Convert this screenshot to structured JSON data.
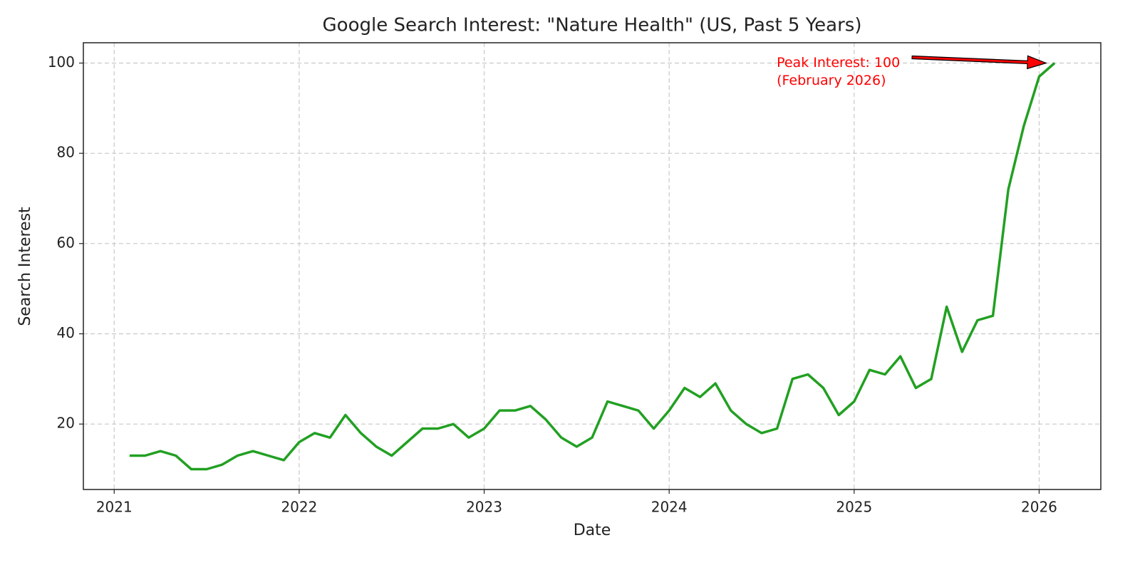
{
  "chart_data": {
    "type": "line",
    "title": "Google Search Interest: \"Nature Health\" (US, Past 5 Years)",
    "x_label": "Date",
    "y_label": "Search Interest",
    "x": [
      "2021-02",
      "2021-03",
      "2021-04",
      "2021-05",
      "2021-06",
      "2021-07",
      "2021-08",
      "2021-09",
      "2021-10",
      "2021-11",
      "2021-12",
      "2022-01",
      "2022-02",
      "2022-03",
      "2022-04",
      "2022-05",
      "2022-06",
      "2022-07",
      "2022-08",
      "2022-09",
      "2022-10",
      "2022-11",
      "2022-12",
      "2023-01",
      "2023-02",
      "2023-03",
      "2023-04",
      "2023-05",
      "2023-06",
      "2023-07",
      "2023-08",
      "2023-09",
      "2023-10",
      "2023-11",
      "2023-12",
      "2024-01",
      "2024-02",
      "2024-03",
      "2024-04",
      "2024-05",
      "2024-06",
      "2024-07",
      "2024-08",
      "2024-09",
      "2024-10",
      "2024-11",
      "2024-12",
      "2025-01",
      "2025-02",
      "2025-03",
      "2025-04",
      "2025-05",
      "2025-06",
      "2025-07",
      "2025-08",
      "2025-09",
      "2025-10",
      "2025-11",
      "2025-12",
      "2026-01",
      "2026-02"
    ],
    "series": [
      {
        "name": "Search Interest",
        "color": "#22a022",
        "values": [
          13,
          13,
          14,
          13,
          10,
          10,
          11,
          13,
          14,
          13,
          12,
          16,
          18,
          17,
          22,
          18,
          15,
          13,
          16,
          19,
          19,
          20,
          17,
          19,
          23,
          23,
          24,
          21,
          17,
          15,
          17,
          25,
          24,
          23,
          19,
          23,
          28,
          26,
          29,
          23,
          20,
          18,
          19,
          30,
          31,
          28,
          22,
          25,
          32,
          31,
          35,
          28,
          30,
          46,
          36,
          43,
          44,
          72,
          86,
          97,
          100
        ]
      }
    ],
    "xlim": [
      "2020-11",
      "2026-05"
    ],
    "xticks": [
      "2021",
      "2022",
      "2023",
      "2024",
      "2025",
      "2026"
    ],
    "ylim": [
      5.5,
      104.5
    ],
    "yticks": [
      20,
      40,
      60,
      80,
      100
    ],
    "grid": true,
    "annotation": {
      "text": [
        "Peak Interest: 100",
        "(February 2026)"
      ],
      "x": "2026-02",
      "y": 100,
      "color": "#ff0000"
    }
  }
}
